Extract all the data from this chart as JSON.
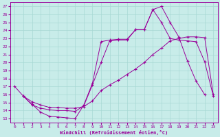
{
  "xlabel": "Windchill (Refroidissement éolien,°C)",
  "background_color": "#c8ece9",
  "grid_color": "#a8d8d4",
  "line_color": "#990099",
  "xlim_min": -0.5,
  "xlim_max": 23.5,
  "ylim_min": 12.5,
  "ylim_max": 27.5,
  "xticks": [
    0,
    1,
    2,
    3,
    4,
    5,
    6,
    7,
    8,
    9,
    10,
    11,
    12,
    13,
    14,
    15,
    16,
    17,
    18,
    19,
    20,
    21,
    22,
    23
  ],
  "yticks": [
    13,
    14,
    15,
    16,
    17,
    18,
    19,
    20,
    21,
    22,
    23,
    24,
    25,
    26,
    27
  ],
  "series1_x": [
    0,
    1,
    2,
    3,
    4,
    5,
    6,
    7,
    8,
    9,
    10,
    11,
    12,
    13,
    14,
    15,
    16,
    17,
    18,
    19,
    20,
    21,
    22
  ],
  "series1_y": [
    17.0,
    15.8,
    14.8,
    13.8,
    13.3,
    13.2,
    13.1,
    13.0,
    14.7,
    17.4,
    22.6,
    22.8,
    22.9,
    22.9,
    24.1,
    24.1,
    26.6,
    27.0,
    25.0,
    23.2,
    20.2,
    17.7,
    16.0
  ],
  "series2_x": [
    1,
    2,
    3,
    4,
    5,
    6,
    7,
    8,
    9,
    10,
    11,
    12,
    13,
    14,
    15,
    16,
    17,
    18,
    19,
    20,
    21,
    22,
    23
  ],
  "series2_y": [
    15.8,
    15.1,
    14.7,
    14.4,
    14.4,
    14.3,
    14.3,
    14.5,
    15.2,
    16.5,
    17.2,
    17.8,
    18.5,
    19.2,
    20.0,
    21.0,
    21.8,
    22.7,
    23.0,
    23.2,
    23.2,
    23.1,
    16.0
  ],
  "series3_x": [
    1,
    2,
    3,
    4,
    5,
    6,
    7,
    8,
    9,
    10,
    11,
    12,
    13,
    14,
    15,
    16,
    17,
    18,
    19,
    20,
    21,
    22,
    23
  ],
  "series3_y": [
    15.8,
    14.7,
    14.3,
    14.1,
    14.0,
    14.0,
    13.9,
    14.6,
    17.2,
    20.0,
    22.7,
    22.8,
    22.8,
    24.1,
    24.1,
    26.6,
    25.0,
    23.0,
    22.8,
    22.7,
    22.6,
    20.1,
    15.8
  ]
}
